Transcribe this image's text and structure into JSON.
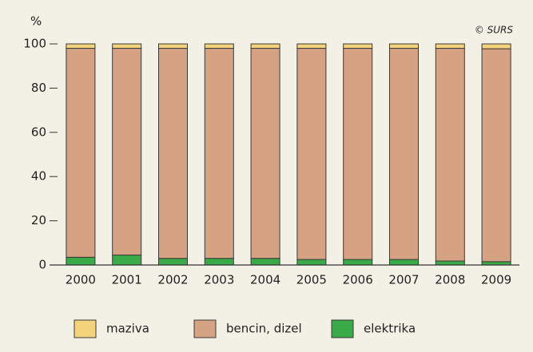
{
  "chart_data": {
    "type": "stacked_bar",
    "y_label": "%",
    "source": "© SURS",
    "categories": [
      "2000",
      "2001",
      "2002",
      "2003",
      "2004",
      "2005",
      "2006",
      "2007",
      "2008",
      "2009"
    ],
    "series": [
      {
        "name": "maziva",
        "color": "#f5d27c",
        "values": [
          2,
          2,
          2,
          2,
          2,
          2,
          2,
          2,
          2,
          2.2
        ]
      },
      {
        "name": "bencin, dizel",
        "color": "#d5a283",
        "values": [
          94.5,
          93.5,
          95,
          95,
          95,
          95.5,
          95.5,
          95.5,
          96.2,
          96.3
        ]
      },
      {
        "name": "elektrika",
        "color": "#3aaa48",
        "values": [
          3.5,
          4.5,
          3,
          3,
          3,
          2.5,
          2.5,
          2.5,
          1.8,
          1.5
        ]
      }
    ],
    "stack_order": "bottom-up from last series",
    "ylim": [
      0,
      100
    ],
    "yticks": [
      0,
      20,
      40,
      60,
      80,
      100
    ],
    "legend": "bottom"
  }
}
